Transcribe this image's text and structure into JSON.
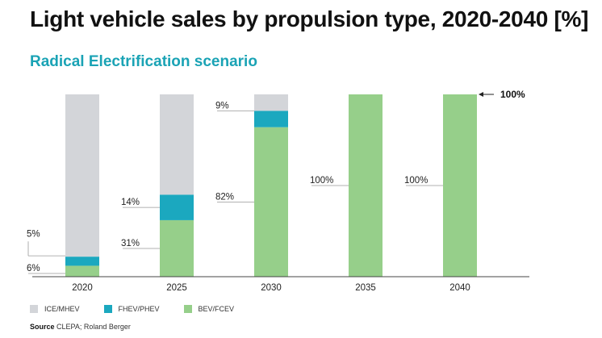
{
  "title": "Light vehicle sales by propulsion type, 2020-2040 [%]",
  "subtitle": "Radical Electrification scenario",
  "colors": {
    "title": "#111111",
    "subtitle": "#1aa3b5",
    "ice": "#d3d5d9",
    "fhev": "#1ba8bf",
    "bev": "#96cf8a",
    "axis": "#444444",
    "leader": "#999999"
  },
  "chart_data": {
    "type": "bar",
    "stacked": true,
    "categories": [
      "2020",
      "2025",
      "2030",
      "2035",
      "2040"
    ],
    "ylim": [
      0,
      100
    ],
    "series": [
      {
        "name": "BEV/FCEV",
        "values": [
          6,
          31,
          82,
          100,
          100
        ]
      },
      {
        "name": "FHEV/PHEV",
        "values": [
          5,
          14,
          9,
          0,
          0
        ]
      },
      {
        "name": "ICE/MHEV",
        "values": [
          89,
          55,
          9,
          0,
          0
        ]
      }
    ],
    "labels": [
      {
        "category": "2020",
        "series": "BEV/FCEV",
        "text": "6%"
      },
      {
        "category": "2020",
        "series": "FHEV/PHEV",
        "text": "5%"
      },
      {
        "category": "2025",
        "series": "BEV/FCEV",
        "text": "31%"
      },
      {
        "category": "2025",
        "series": "FHEV/PHEV",
        "text": "14%"
      },
      {
        "category": "2030",
        "series": "BEV/FCEV",
        "text": "82%"
      },
      {
        "category": "2030",
        "series": "FHEV/PHEV",
        "text": "9%"
      },
      {
        "category": "2035",
        "series": "BEV/FCEV",
        "text": "100%"
      },
      {
        "category": "2040",
        "series": "BEV/FCEV",
        "text": "100%"
      }
    ],
    "reference_label": "100%",
    "legend": [
      "ICE/MHEV",
      "FHEV/PHEV",
      "BEV/FCEV"
    ]
  },
  "source": {
    "label": "Source",
    "text": "CLEPA; Roland Berger"
  }
}
